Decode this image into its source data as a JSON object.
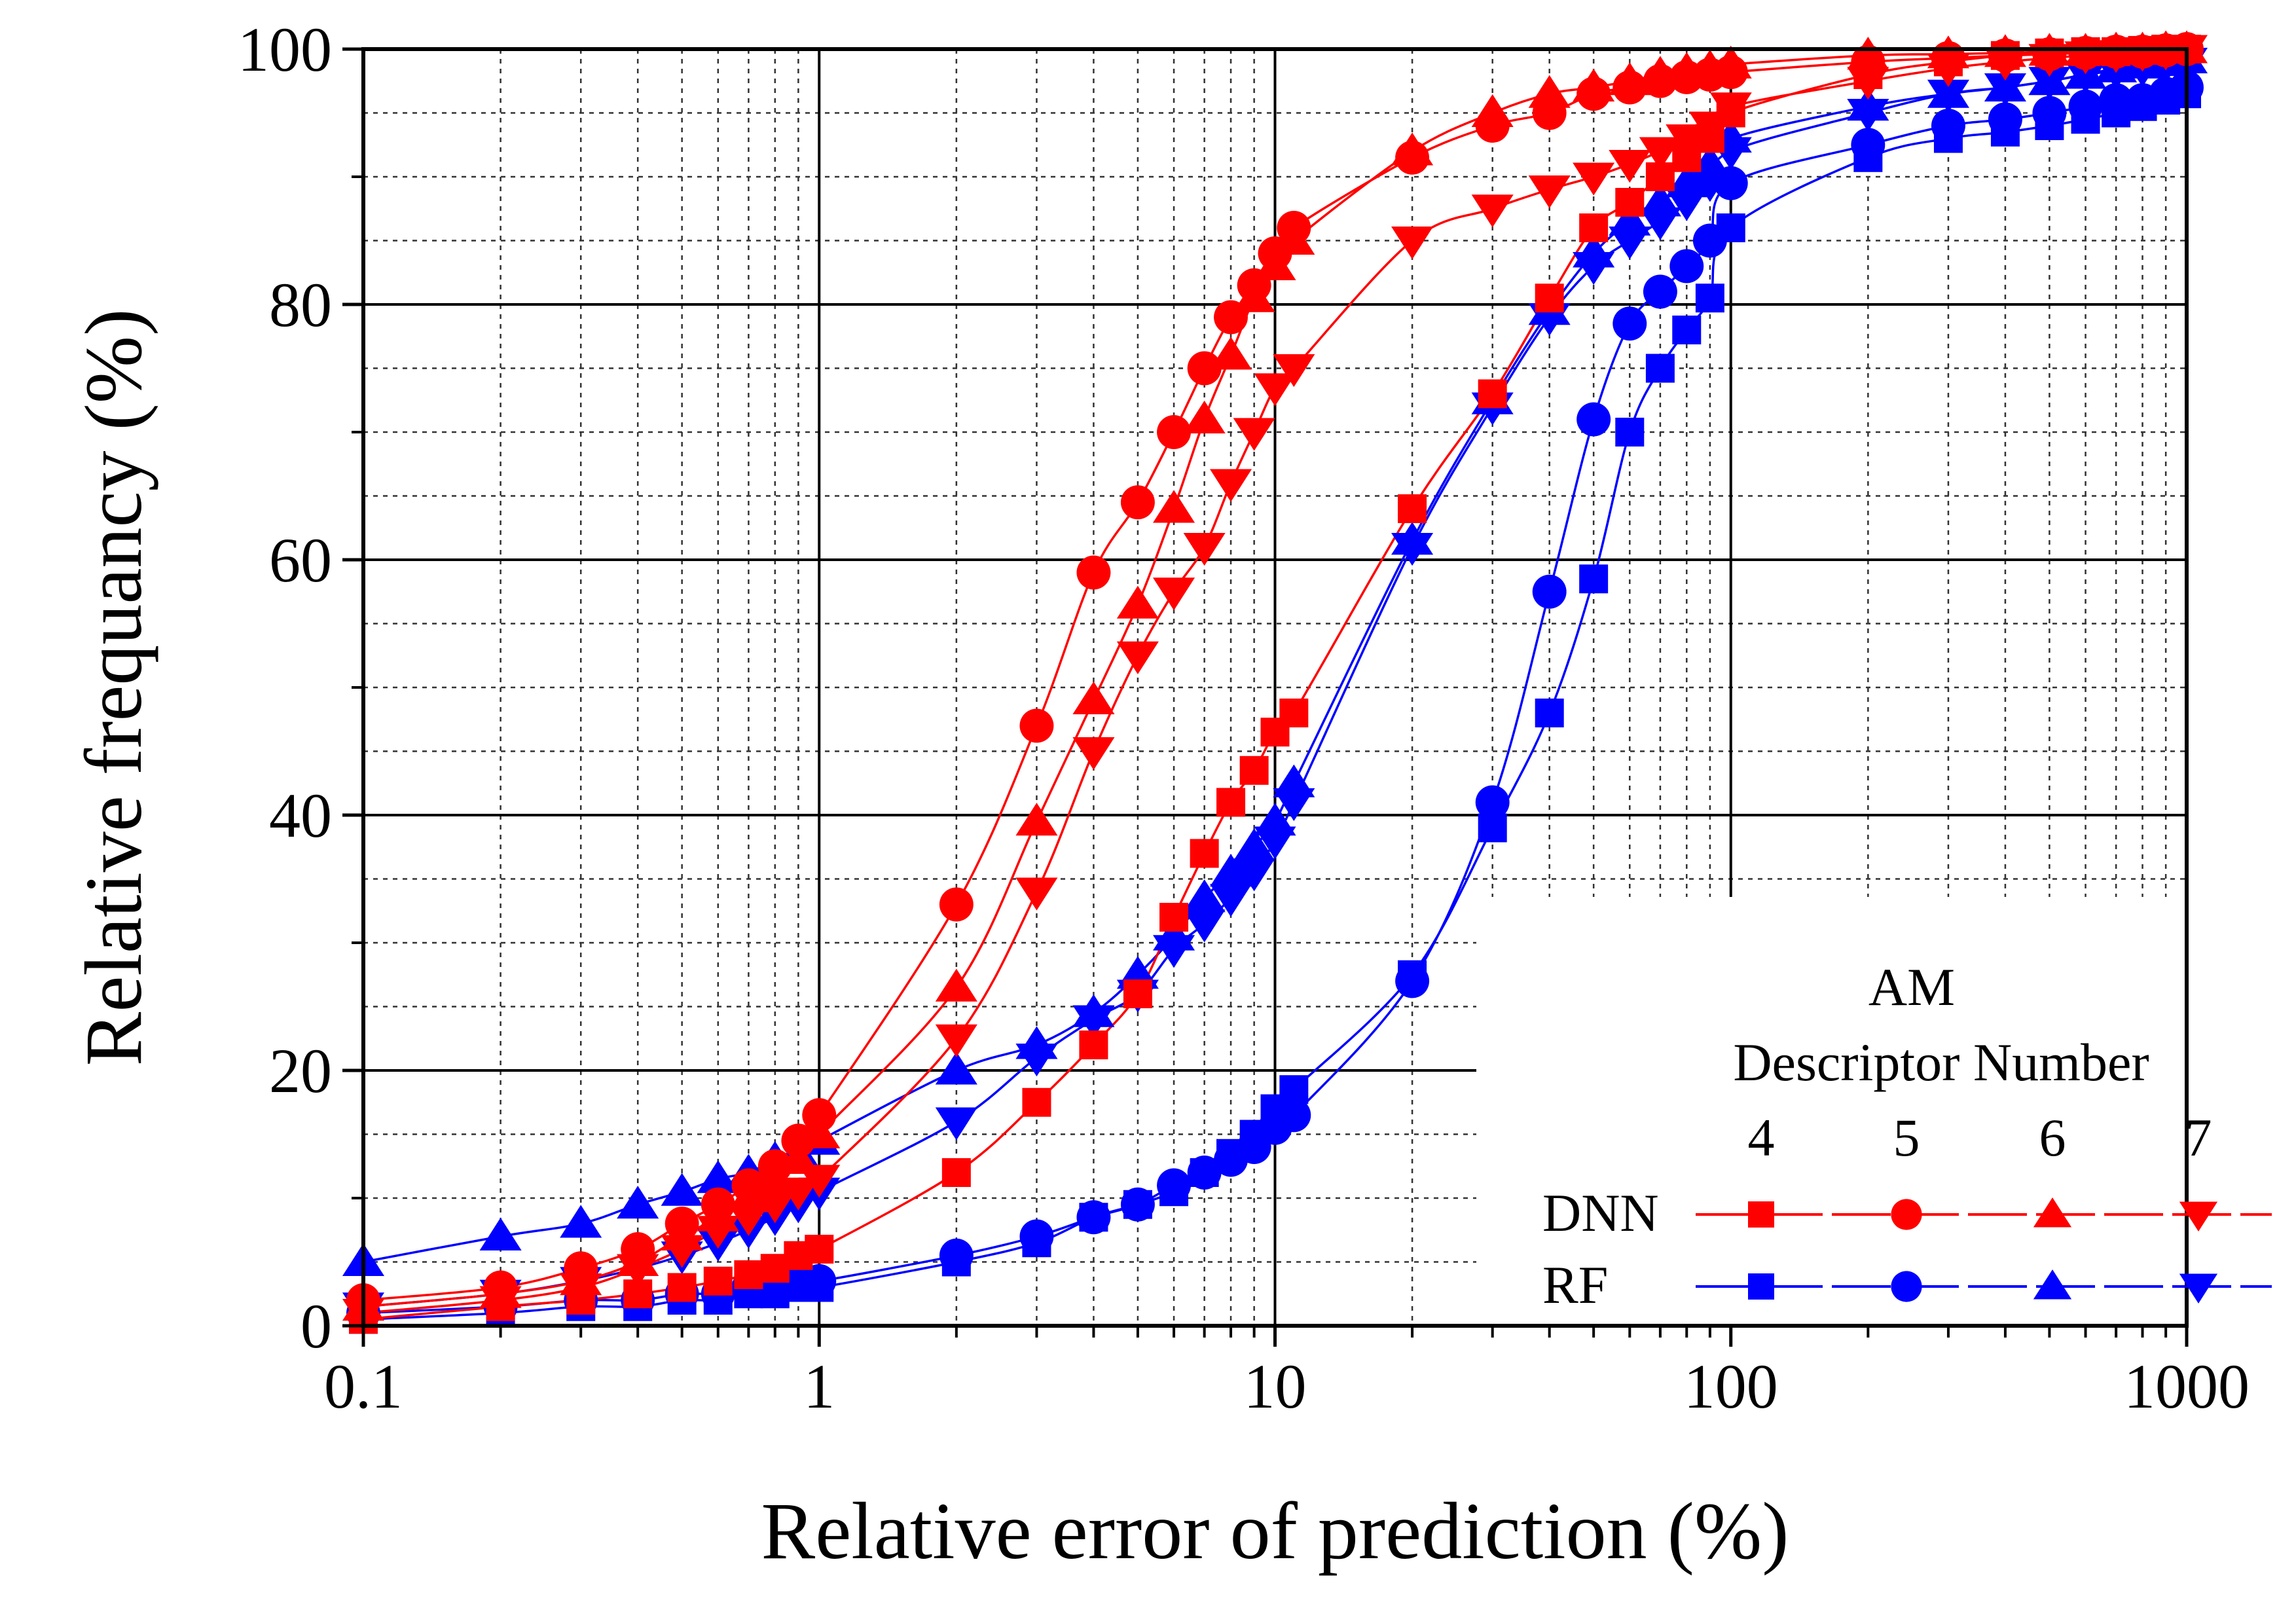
{
  "chart_data": {
    "type": "scatter",
    "xlabel": "Relative error of prediction (%)",
    "ylabel": "Relative frequancy (%)",
    "xscale": "log",
    "xlim": [
      0.1,
      1000
    ],
    "ylim": [
      0,
      100
    ],
    "x_tick_labels": [
      "0.1",
      "1",
      "10",
      "100",
      "1000"
    ],
    "y_tick_labels": [
      "0",
      "20",
      "40",
      "60",
      "80",
      "100"
    ],
    "grid": true,
    "legend": {
      "placement": "bottom-right",
      "title_line1": "AM",
      "title_line2": "Descriptor Number",
      "columns": [
        "4",
        "5",
        "6",
        "7"
      ],
      "rows": [
        "DNN",
        "RF"
      ]
    },
    "colors": {
      "DNN": "#ff0000",
      "RF": "#0000ff"
    },
    "x": [
      0.1,
      0.2,
      0.3,
      0.4,
      0.5,
      0.6,
      0.7,
      0.8,
      0.9,
      1,
      2,
      3,
      4,
      5,
      6,
      7,
      8,
      9,
      10,
      11,
      20,
      30,
      40,
      50,
      60,
      70,
      80,
      90,
      100,
      200,
      300,
      400,
      500,
      600,
      700,
      800,
      900,
      1000
    ],
    "series": [
      {
        "model": "DNN",
        "descriptor": "4",
        "marker": "square",
        "values": [
          0.5,
          1.5,
          2.0,
          2.5,
          3.0,
          3.5,
          4.0,
          4.5,
          5.5,
          6.0,
          12.0,
          17.5,
          22.0,
          26.0,
          32.0,
          37.0,
          41.0,
          43.5,
          46.5,
          48.0,
          64.0,
          73.0,
          80.5,
          86.0,
          88.0,
          90.0,
          91.5,
          93.0,
          95.0,
          98.0,
          99.0,
          99.5,
          99.7,
          99.8,
          99.8,
          99.9,
          100.0,
          100.0
        ]
      },
      {
        "model": "DNN",
        "descriptor": "5",
        "marker": "circle",
        "values": [
          2.0,
          3.0,
          4.5,
          6.0,
          8.0,
          9.5,
          11.0,
          12.5,
          14.5,
          16.5,
          33.0,
          47.0,
          59.0,
          64.5,
          70.0,
          75.0,
          79.0,
          81.5,
          84.0,
          86.0,
          91.5,
          94.0,
          95.0,
          96.5,
          97.0,
          97.5,
          97.8,
          98.0,
          98.2,
          99.0,
          99.3,
          99.5,
          99.6,
          99.7,
          99.8,
          99.8,
          99.9,
          100.0
        ]
      },
      {
        "model": "DNN",
        "descriptor": "6",
        "marker": "triangle-up",
        "values": [
          1.5,
          2.5,
          3.5,
          5.0,
          7.0,
          8.5,
          10.0,
          11.5,
          13.0,
          15.0,
          26.5,
          39.5,
          49.0,
          56.5,
          64.0,
          71.0,
          76.0,
          80.5,
          83.0,
          85.0,
          92.0,
          95.0,
          96.5,
          97.0,
          97.5,
          98.0,
          98.3,
          98.5,
          98.8,
          99.5,
          99.6,
          99.7,
          99.8,
          99.8,
          99.9,
          99.9,
          100.0,
          100.0
        ]
      },
      {
        "model": "DNN",
        "descriptor": "7",
        "marker": "triangle-down",
        "values": [
          1.0,
          2.0,
          3.0,
          4.5,
          6.0,
          7.5,
          8.5,
          9.5,
          10.5,
          11.5,
          22.5,
          34.0,
          45.0,
          52.5,
          57.5,
          61.0,
          66.0,
          70.0,
          73.5,
          75.0,
          85.0,
          87.5,
          89.0,
          90.0,
          91.0,
          92.0,
          93.0,
          94.0,
          95.5,
          97.5,
          98.5,
          99.0,
          99.3,
          99.5,
          99.6,
          99.7,
          99.8,
          100.0
        ]
      },
      {
        "model": "RF",
        "descriptor": "4",
        "marker": "square",
        "values": [
          0.5,
          1.0,
          1.5,
          1.5,
          2.0,
          2.0,
          2.5,
          2.5,
          3.0,
          3.0,
          5.0,
          6.5,
          8.5,
          9.5,
          10.5,
          12.0,
          13.5,
          15.0,
          17.0,
          18.5,
          27.5,
          39.0,
          48.0,
          58.5,
          70.0,
          75.0,
          78.0,
          80.5,
          86.0,
          91.5,
          93.0,
          93.5,
          94.0,
          94.5,
          95.0,
          95.5,
          96.0,
          96.5
        ]
      },
      {
        "model": "RF",
        "descriptor": "5",
        "marker": "circle",
        "values": [
          1.0,
          1.5,
          2.0,
          2.0,
          2.5,
          2.5,
          3.0,
          3.0,
          3.5,
          3.5,
          5.5,
          7.0,
          8.5,
          9.5,
          11.0,
          12.0,
          13.0,
          14.0,
          15.5,
          16.5,
          27.0,
          41.0,
          57.5,
          71.0,
          78.5,
          81.0,
          83.0,
          85.0,
          89.5,
          92.5,
          94.0,
          94.5,
          95.0,
          95.5,
          96.0,
          96.0,
          96.5,
          97.0
        ]
      },
      {
        "model": "RF",
        "descriptor": "6",
        "marker": "triangle-up",
        "values": [
          5.0,
          7.0,
          8.0,
          9.5,
          10.5,
          11.5,
          12.0,
          13.0,
          13.5,
          14.5,
          20.0,
          22.0,
          24.5,
          27.5,
          30.5,
          33.5,
          35.5,
          37.5,
          39.5,
          42.5,
          61.5,
          72.5,
          79.5,
          84.0,
          86.5,
          88.0,
          89.5,
          91.0,
          93.0,
          95.5,
          96.5,
          97.0,
          97.5,
          98.0,
          98.5,
          98.8,
          99.0,
          99.2
        ]
      },
      {
        "model": "RF",
        "descriptor": "7",
        "marker": "triangle-down",
        "values": [
          1.5,
          2.5,
          3.5,
          4.5,
          5.5,
          6.5,
          7.5,
          8.5,
          9.5,
          10.5,
          16.0,
          21.0,
          24.0,
          26.0,
          29.5,
          31.5,
          33.5,
          35.5,
          38.0,
          41.0,
          61.0,
          72.0,
          79.0,
          83.0,
          85.0,
          86.5,
          88.0,
          89.5,
          92.0,
          95.0,
          96.5,
          97.0,
          97.5,
          98.0,
          98.3,
          98.5,
          98.8,
          99.0
        ]
      }
    ]
  }
}
